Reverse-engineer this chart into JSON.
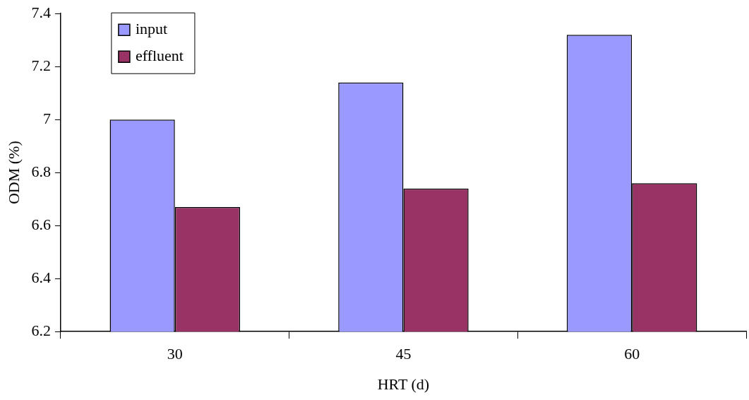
{
  "chart_data": {
    "type": "bar",
    "xlabel": "HRT (d)",
    "ylabel": "ODM (%)",
    "categories": [
      "30",
      "45",
      "60"
    ],
    "series": [
      {
        "name": "input",
        "color": "#9999ff",
        "values": [
          7.0,
          7.14,
          7.32
        ]
      },
      {
        "name": "effluent",
        "color": "#993366",
        "values": [
          6.67,
          6.74,
          6.76
        ]
      }
    ],
    "ylim": [
      6.2,
      7.4
    ],
    "yticks": [
      6.2,
      6.4,
      6.6,
      6.8,
      7,
      7.2,
      7.4
    ],
    "grid": false,
    "legend": "top left"
  }
}
